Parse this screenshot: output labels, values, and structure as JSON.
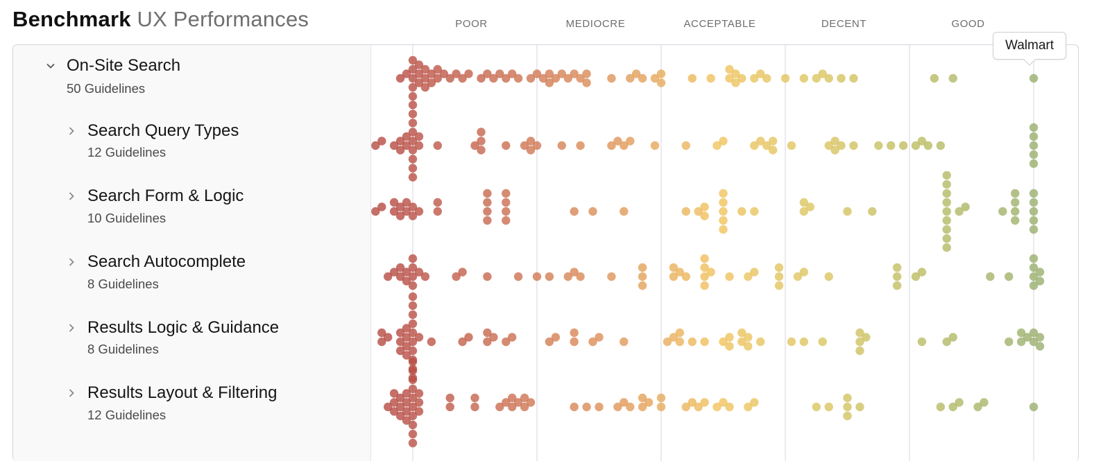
{
  "header": {
    "title_strong": "Benchmark",
    "title_light": "UX Performances"
  },
  "tooltip": {
    "label": "Walmart",
    "row": 0,
    "score": 100
  },
  "rows_meta": [
    {
      "name": "On-Site Search",
      "count_label": "50 Guidelines",
      "expanded": true,
      "icon": "chevron-down-icon"
    },
    {
      "name": "Search Query Types",
      "count_label": "12 Guidelines",
      "expanded": false,
      "icon": "chevron-right-icon"
    },
    {
      "name": "Search Form & Logic",
      "count_label": "10 Guidelines",
      "expanded": false,
      "icon": "chevron-right-icon"
    },
    {
      "name": "Search Autocomplete",
      "count_label": "8 Guidelines",
      "expanded": false,
      "icon": "chevron-right-icon"
    },
    {
      "name": "Results Logic & Guidance",
      "count_label": "8 Guidelines",
      "expanded": false,
      "icon": "chevron-right-icon"
    },
    {
      "name": "Results Layout & Filtering",
      "count_label": "12 Guidelines",
      "expanded": false,
      "icon": "chevron-right-icon"
    }
  ],
  "colors": {
    "scale": [
      "#b5473f",
      "#c96a4c",
      "#de9155",
      "#f0c25a",
      "#d9c45c",
      "#b7ba5e",
      "#97ad6a"
    ],
    "gridline": "#dcdde6",
    "frame": "#d3d4dc",
    "left_panel_bg": "#f9f9f9"
  },
  "chart_data": {
    "type": "scatter",
    "subtype": "beeswarm-strip",
    "title": "Benchmark UX Performances",
    "xlabel": "",
    "ylabel": "",
    "x_domain": [
      -7,
      107
    ],
    "categories": [
      "POOR",
      "MEDIOCRE",
      "ACCEPTABLE",
      "DECENT",
      "GOOD"
    ],
    "category_bounds": [
      0,
      20,
      40,
      60,
      80,
      100
    ],
    "grid": true,
    "legend": "none",
    "series": [
      {
        "name": "On-Site Search",
        "values": [
          -2,
          -1,
          0,
          0,
          0,
          0,
          0,
          1,
          1,
          1,
          2,
          2,
          2,
          3,
          3,
          4,
          4,
          5,
          6,
          7,
          8,
          9,
          11,
          12,
          13,
          14,
          15,
          16,
          17,
          19,
          20,
          21,
          22,
          22,
          23,
          24,
          25,
          26,
          27,
          28,
          28,
          32,
          35,
          36,
          37,
          39,
          40,
          40,
          45,
          48,
          51,
          51,
          52,
          52,
          53,
          55,
          56,
          57,
          60,
          63,
          65,
          66,
          67,
          69,
          71,
          84,
          87,
          100
        ]
      },
      {
        "name": "Search Query Types",
        "values": [
          -6,
          -5,
          -3,
          -2,
          -2,
          -1,
          -1,
          0,
          0,
          0,
          0,
          0,
          0,
          0,
          0,
          0,
          1,
          1,
          4,
          10,
          11,
          11,
          11,
          15,
          18,
          19,
          19,
          20,
          24,
          27,
          32,
          33,
          34,
          35,
          39,
          44,
          49,
          50,
          55,
          56,
          57,
          58,
          58,
          61,
          67,
          68,
          68,
          69,
          71,
          75,
          77,
          79,
          81,
          82,
          83,
          85,
          100,
          100,
          100,
          100,
          100
        ]
      },
      {
        "name": "Search Form & Logic",
        "values": [
          -6,
          -5,
          -3,
          -3,
          -2,
          -2,
          -1,
          -1,
          0,
          0,
          1,
          4,
          4,
          12,
          12,
          12,
          12,
          15,
          15,
          15,
          15,
          26,
          29,
          34,
          44,
          46,
          47,
          47,
          50,
          50,
          50,
          50,
          50,
          53,
          55,
          63,
          63,
          64,
          70,
          74,
          86,
          86,
          86,
          86,
          86,
          86,
          86,
          86,
          86,
          88,
          89,
          95,
          97,
          97,
          97,
          97,
          100,
          100,
          100,
          100,
          100
        ]
      },
      {
        "name": "Search Autocomplete",
        "values": [
          -4,
          -3,
          -2,
          -2,
          -1,
          -1,
          0,
          0,
          0,
          0,
          1,
          2,
          7,
          8,
          12,
          17,
          20,
          22,
          25,
          26,
          27,
          32,
          37,
          37,
          37,
          42,
          42,
          43,
          44,
          47,
          47,
          47,
          47,
          48,
          51,
          54,
          55,
          59,
          59,
          59,
          62,
          63,
          67,
          78,
          78,
          78,
          81,
          82,
          93,
          96,
          100,
          100,
          100,
          100,
          101,
          101
        ]
      },
      {
        "name": "Results Logic & Guidance",
        "values": [
          -5,
          -5,
          -4,
          -2,
          -2,
          -2,
          -1,
          -1,
          -1,
          -1,
          0,
          0,
          0,
          0,
          0,
          0,
          0,
          0,
          0,
          0,
          1,
          3,
          8,
          9,
          12,
          12,
          13,
          15,
          16,
          22,
          23,
          26,
          26,
          29,
          30,
          34,
          41,
          42,
          43,
          43,
          45,
          47,
          50,
          51,
          51,
          53,
          53,
          54,
          54,
          56,
          61,
          63,
          66,
          72,
          72,
          72,
          73,
          82,
          86,
          87,
          96,
          98,
          98,
          99,
          100,
          100,
          101,
          101
        ]
      },
      {
        "name": "Results Layout & Filtering",
        "values": [
          -4,
          -3,
          -3,
          -3,
          -2,
          -2,
          -2,
          -1,
          -1,
          -1,
          -1,
          0,
          0,
          0,
          0,
          0,
          0,
          0,
          0,
          0,
          0,
          1,
          1,
          1,
          6,
          6,
          10,
          10,
          14,
          15,
          16,
          16,
          17,
          18,
          18,
          19,
          26,
          28,
          30,
          33,
          34,
          35,
          37,
          37,
          38,
          40,
          40,
          44,
          45,
          46,
          47,
          49,
          50,
          51,
          54,
          55,
          65,
          67,
          70,
          70,
          70,
          72,
          85,
          87,
          88,
          91,
          92,
          100
        ]
      }
    ]
  }
}
